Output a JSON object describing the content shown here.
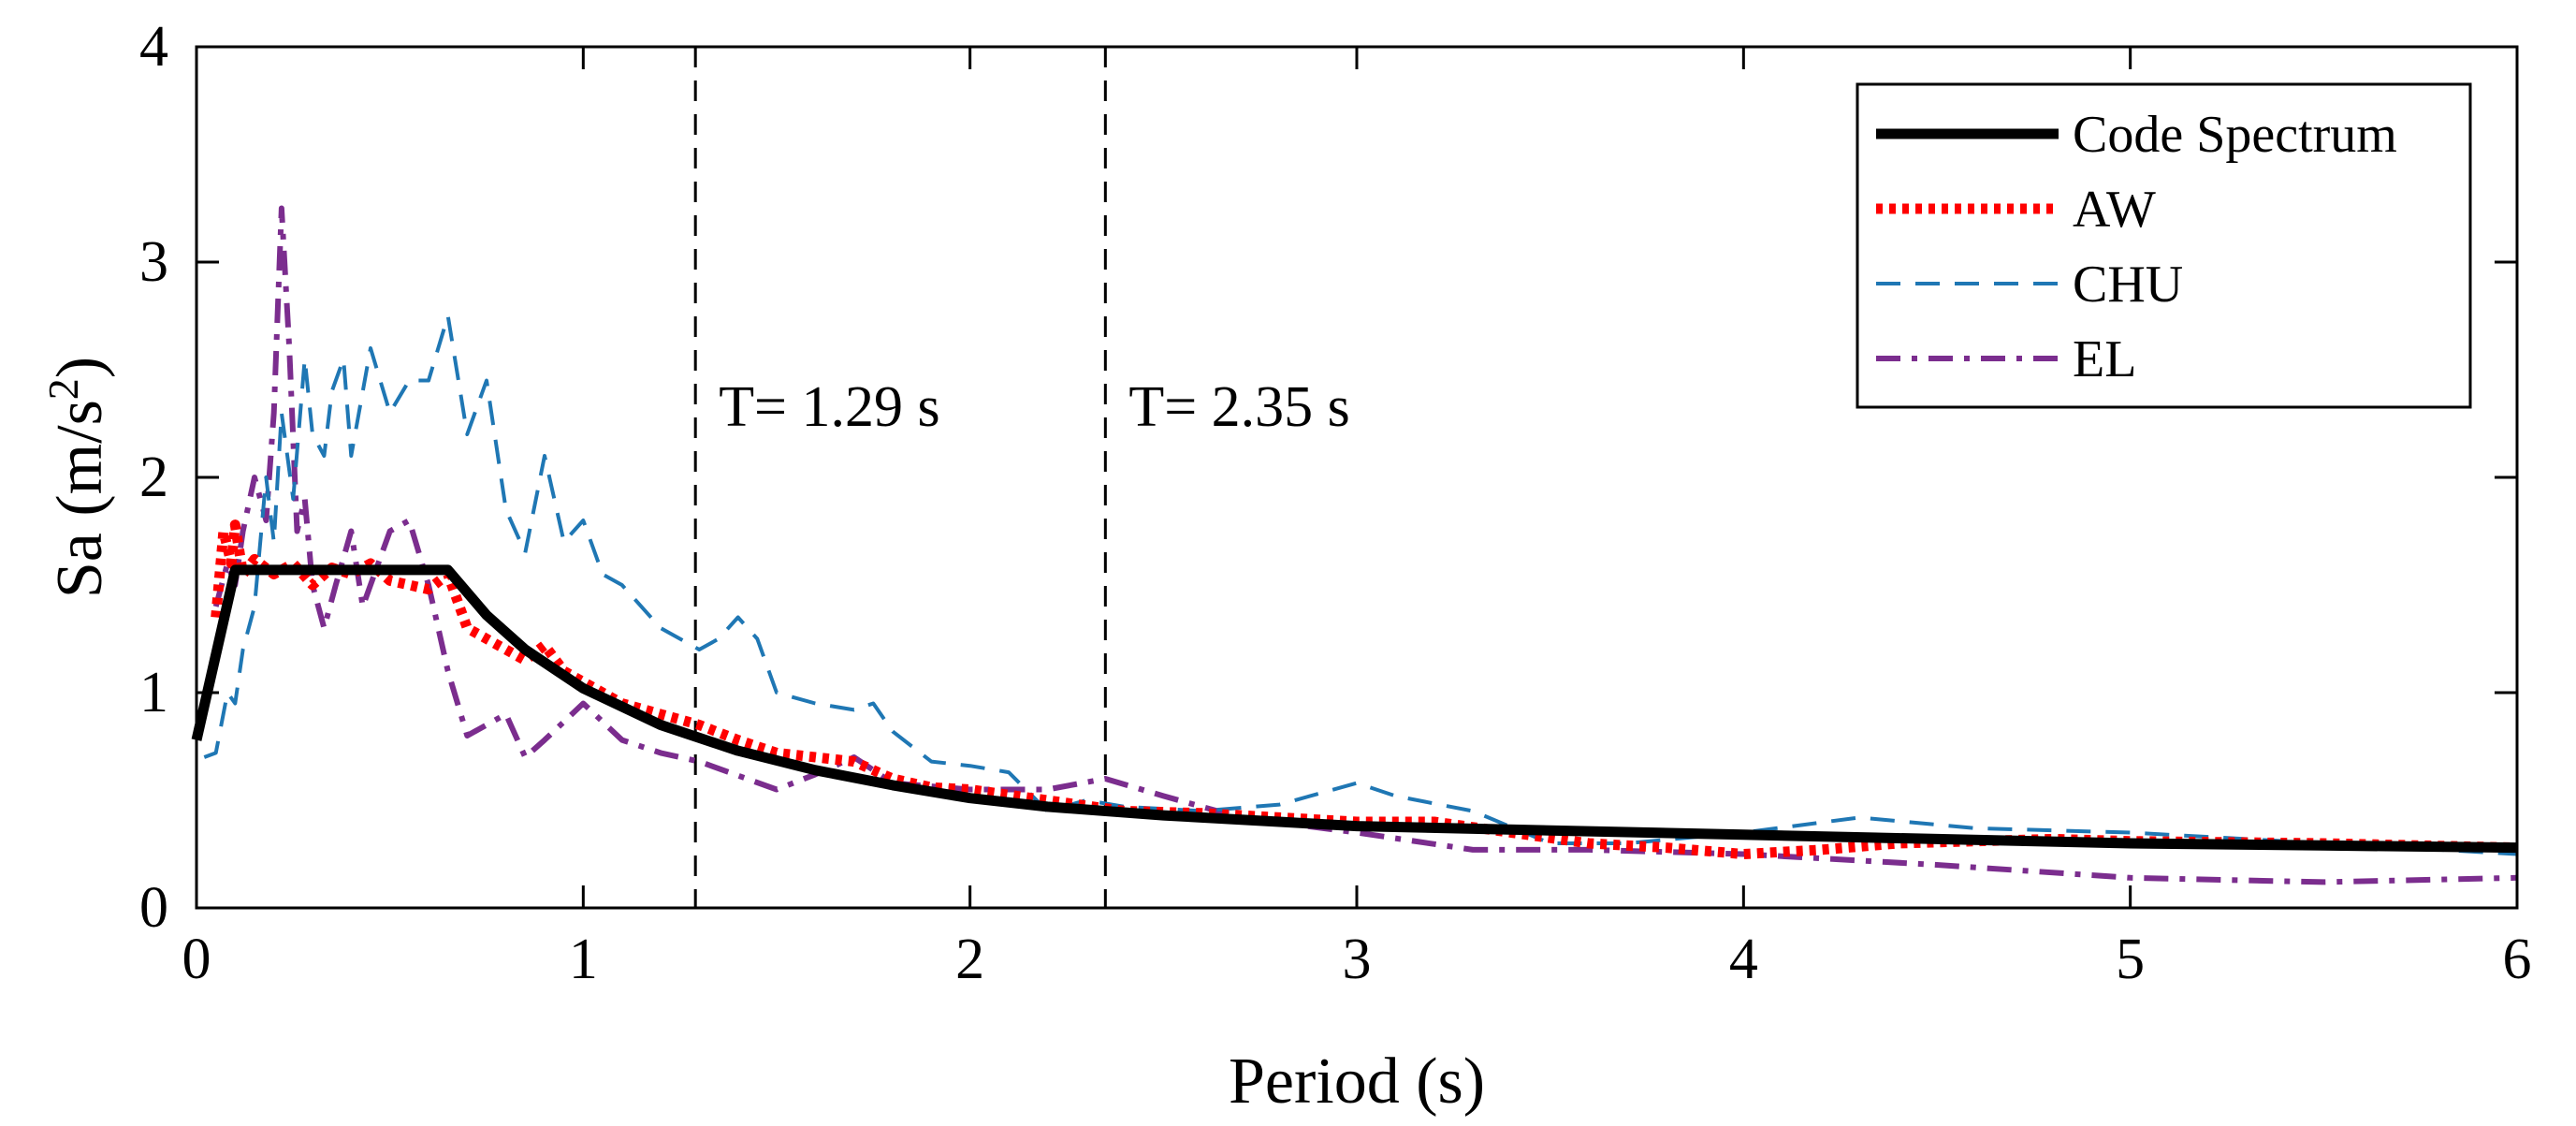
{
  "chart_data": {
    "type": "line",
    "xlabel": "Period (s)",
    "ylabel_main": "Sa (m/s",
    "ylabel_sup": "2",
    "ylabel_close": ")",
    "xlim": [
      0,
      6
    ],
    "ylim": [
      0,
      4
    ],
    "xticks": [
      0,
      1,
      2,
      3,
      4,
      5,
      6
    ],
    "yticks": [
      0,
      1,
      2,
      3,
      4
    ],
    "legend_position": "top-right",
    "reference_lines": [
      {
        "x": 1.29,
        "label": "T= 1.29 s"
      },
      {
        "x": 2.35,
        "label": "T= 2.35 s"
      }
    ],
    "series": [
      {
        "name": "Code Spectrum",
        "color": "#000000",
        "style": "solid-thick",
        "x": [
          0,
          0.1,
          0.2,
          0.3,
          0.4,
          0.5,
          0.6,
          0.65,
          0.75,
          0.85,
          1.0,
          1.2,
          1.4,
          1.6,
          1.8,
          2.0,
          2.2,
          2.5,
          2.8,
          3.0,
          3.5,
          4.0,
          4.5,
          5.0,
          5.5,
          6.0
        ],
        "values": [
          0.78,
          1.57,
          1.57,
          1.57,
          1.57,
          1.57,
          1.57,
          1.57,
          1.36,
          1.2,
          1.02,
          0.85,
          0.73,
          0.64,
          0.57,
          0.51,
          0.47,
          0.43,
          0.4,
          0.38,
          0.36,
          0.34,
          0.32,
          0.3,
          0.29,
          0.28
        ]
      },
      {
        "name": "AW",
        "color": "#ff0000",
        "style": "dotted",
        "x": [
          0.05,
          0.07,
          0.09,
          0.1,
          0.12,
          0.15,
          0.2,
          0.25,
          0.3,
          0.35,
          0.4,
          0.45,
          0.5,
          0.55,
          0.6,
          0.65,
          0.7,
          0.75,
          0.8,
          0.85,
          0.9,
          0.95,
          1.0,
          1.1,
          1.2,
          1.3,
          1.4,
          1.5,
          1.6,
          1.7,
          1.8,
          1.9,
          2.0,
          2.2,
          2.4,
          2.6,
          2.8,
          3.0,
          3.2,
          3.4,
          3.6,
          3.8,
          4.0,
          4.2,
          4.4,
          4.6,
          4.8,
          5.0,
          5.5,
          6.0
        ],
        "values": [
          1.35,
          1.75,
          1.6,
          1.78,
          1.55,
          1.62,
          1.55,
          1.6,
          1.5,
          1.58,
          1.55,
          1.6,
          1.52,
          1.5,
          1.48,
          1.55,
          1.3,
          1.25,
          1.2,
          1.15,
          1.22,
          1.1,
          1.05,
          0.95,
          0.9,
          0.85,
          0.78,
          0.72,
          0.7,
          0.68,
          0.6,
          0.56,
          0.55,
          0.5,
          0.45,
          0.44,
          0.42,
          0.4,
          0.4,
          0.35,
          0.3,
          0.28,
          0.25,
          0.27,
          0.3,
          0.31,
          0.32,
          0.31,
          0.3,
          0.28
        ]
      },
      {
        "name": "CHU",
        "color": "#1f77b4",
        "style": "dashed",
        "x": [
          0.02,
          0.05,
          0.08,
          0.1,
          0.12,
          0.15,
          0.18,
          0.2,
          0.22,
          0.25,
          0.28,
          0.3,
          0.33,
          0.35,
          0.38,
          0.4,
          0.45,
          0.5,
          0.55,
          0.6,
          0.65,
          0.7,
          0.75,
          0.8,
          0.85,
          0.9,
          0.95,
          1.0,
          1.05,
          1.1,
          1.2,
          1.3,
          1.35,
          1.4,
          1.45,
          1.5,
          1.6,
          1.7,
          1.75,
          1.8,
          1.9,
          2.0,
          2.1,
          2.2,
          2.3,
          2.4,
          2.6,
          2.8,
          3.0,
          3.1,
          3.3,
          3.5,
          3.7,
          4.0,
          4.3,
          4.6,
          5.0,
          5.5,
          6.0
        ],
        "values": [
          0.7,
          0.72,
          1.0,
          0.95,
          1.2,
          1.4,
          2.0,
          1.7,
          2.3,
          1.9,
          2.55,
          2.2,
          2.1,
          2.4,
          2.55,
          2.1,
          2.6,
          2.3,
          2.45,
          2.45,
          2.75,
          2.2,
          2.45,
          1.85,
          1.65,
          2.1,
          1.7,
          1.8,
          1.55,
          1.5,
          1.3,
          1.2,
          1.25,
          1.35,
          1.25,
          1.0,
          0.95,
          0.92,
          0.95,
          0.82,
          0.68,
          0.66,
          0.63,
          0.45,
          0.5,
          0.47,
          0.45,
          0.48,
          0.58,
          0.52,
          0.45,
          0.3,
          0.3,
          0.35,
          0.42,
          0.37,
          0.35,
          0.3,
          0.25
        ]
      },
      {
        "name": "EL",
        "color": "#7b2d8e",
        "style": "dashdot",
        "x": [
          0.05,
          0.08,
          0.1,
          0.12,
          0.15,
          0.18,
          0.2,
          0.22,
          0.24,
          0.26,
          0.28,
          0.3,
          0.33,
          0.36,
          0.4,
          0.43,
          0.46,
          0.5,
          0.55,
          0.6,
          0.65,
          0.7,
          0.75,
          0.8,
          0.85,
          0.9,
          1.0,
          1.1,
          1.2,
          1.3,
          1.5,
          1.6,
          1.7,
          1.8,
          2.0,
          2.2,
          2.35,
          2.5,
          2.7,
          3.0,
          3.3,
          3.6,
          4.0,
          4.5,
          5.0,
          5.5,
          6.0
        ],
        "values": [
          1.4,
          1.6,
          1.5,
          1.75,
          2.0,
          1.8,
          2.3,
          3.25,
          2.6,
          1.75,
          1.9,
          1.5,
          1.3,
          1.5,
          1.75,
          1.4,
          1.55,
          1.75,
          1.8,
          1.5,
          1.1,
          0.8,
          0.85,
          0.9,
          0.7,
          0.78,
          0.95,
          0.78,
          0.72,
          0.68,
          0.55,
          0.62,
          0.7,
          0.58,
          0.55,
          0.55,
          0.6,
          0.52,
          0.42,
          0.35,
          0.27,
          0.27,
          0.25,
          0.2,
          0.14,
          0.12,
          0.14
        ]
      }
    ]
  }
}
